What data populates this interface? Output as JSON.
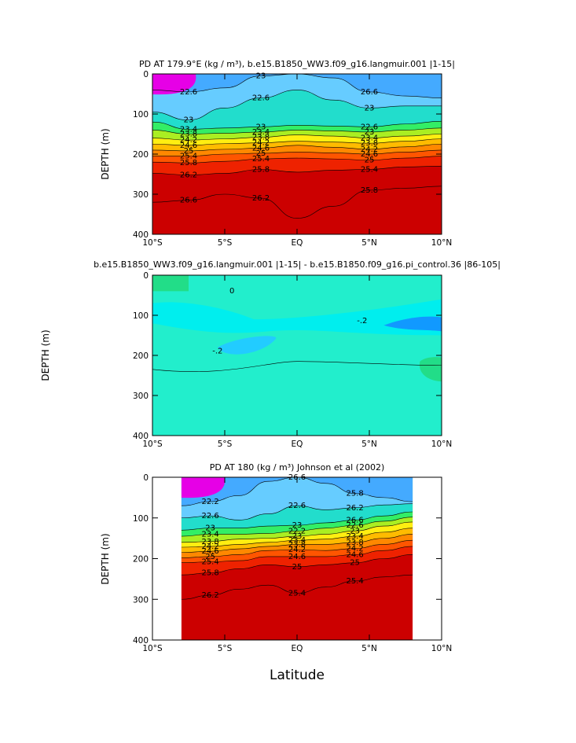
{
  "chart_data": [
    {
      "type": "contour",
      "title": "PD AT 179.9°E (kg / m³), b.e15.B1850_WW3.f09_g16.langmuir.001 |1-15|",
      "xlabel": "",
      "ylabel": "DEPTH (m)",
      "xlim": [
        -10,
        10
      ],
      "ylim": [
        400,
        0
      ],
      "x_ticks": [
        -10,
        -5,
        0,
        5,
        10
      ],
      "x_tick_labels": [
        "10°S",
        "5°S",
        "EQ",
        "5°N",
        "10°N"
      ],
      "y_ticks": [
        0,
        100,
        200,
        300,
        400
      ],
      "y_tick_labels": [
        "0",
        "100",
        "200",
        "300",
        "400"
      ],
      "contour_labels": [
        "22.6",
        "23",
        "23.4",
        "23.8",
        "24.2",
        "24.6",
        "25",
        "25.4",
        "25.8",
        "26.2",
        "26.6",
        "23",
        "22.6",
        "23",
        "23.4",
        "23.8",
        "24.2",
        "24.6",
        "25",
        "25.4",
        "25.8",
        "26.2",
        "26.6",
        "23",
        "22.6",
        "23",
        "23.4",
        "23.8",
        "24.2",
        "24.6",
        "25",
        "25.4",
        "25.8",
        "26.2",
        "26.6"
      ],
      "isopycnal_depths": {
        "x": [
          -10,
          -7.5,
          -5,
          -2.5,
          0,
          2.5,
          5,
          7.5,
          10
        ],
        "series": [
          {
            "value": 22.6,
            "depth": [
              40,
              45,
              35,
              5,
              0,
              10,
              45,
              55,
              60
            ]
          },
          {
            "value": 23.0,
            "depth": [
              95,
              115,
              85,
              60,
              40,
              65,
              85,
              80,
              80
            ]
          },
          {
            "value": 23.4,
            "depth": [
              120,
              138,
              135,
              132,
              128,
              130,
              132,
              125,
              118
            ]
          },
          {
            "value": 23.8,
            "depth": [
              140,
              150,
              148,
              145,
              140,
              142,
              145,
              140,
              135
            ]
          },
          {
            "value": 24.2,
            "depth": [
              160,
              165,
              162,
              158,
              152,
              155,
              160,
              155,
              150
            ]
          },
          {
            "value": 24.6,
            "depth": [
              175,
              178,
              174,
              172,
              168,
              170,
              173,
              168,
              162
            ]
          },
          {
            "value": 25.0,
            "depth": [
              190,
              192,
              188,
              185,
              178,
              183,
              188,
              182,
              175
            ]
          },
          {
            "value": 25.4,
            "depth": [
              205,
              205,
              200,
              198,
              195,
              197,
              200,
              195,
              190
            ]
          },
          {
            "value": 25.8,
            "depth": [
              220,
              222,
              218,
              212,
              210,
              212,
              215,
              210,
              205
            ]
          },
          {
            "value": 26.2,
            "depth": [
              248,
              252,
              248,
              238,
              245,
              240,
              238,
              232,
              230
            ]
          },
          {
            "value": 26.6,
            "depth": [
              320,
              315,
              300,
              310,
              360,
              330,
              290,
              285,
              280
            ]
          }
        ]
      },
      "fill_colors": [
        "#e600e6",
        "#9b27ff",
        "#2222ff",
        "#1177ff",
        "#44aaff",
        "#66ccff",
        "#22ddcc",
        "#33ee66",
        "#aaee22",
        "#ffee11",
        "#ffbb00",
        "#ff8800",
        "#ff5500",
        "#ee2200",
        "#cc0000"
      ]
    },
    {
      "type": "contour",
      "title": "b.e15.B1850_WW3.f09_g16.langmuir.001 |1-15| - b.e15.B1850.f09_g16.pi_control.36 |86-105|",
      "xlabel": "",
      "ylabel": "DEPTH (m)",
      "xlim": [
        -10,
        10
      ],
      "ylim": [
        400,
        0
      ],
      "x_ticks": [
        -10,
        -5,
        0,
        5,
        10
      ],
      "x_tick_labels": [
        "10°S",
        "5°S",
        "EQ",
        "5°N",
        "10°N"
      ],
      "y_ticks": [
        0,
        100,
        200,
        300,
        400
      ],
      "y_tick_labels": [
        "0",
        "100",
        "200",
        "300",
        "400"
      ],
      "contour_labels": [
        "0",
        "-.2",
        "-.2"
      ],
      "fill_colors": [
        "#22dd88",
        "#22eecc",
        "#00eeee",
        "#22ccff",
        "#1199ff"
      ]
    },
    {
      "type": "contour",
      "title": "PD AT 180 (kg / m³) Johnson et al (2002)",
      "xlabel": "Latitude",
      "ylabel": "DEPTH (m)",
      "xlim": [
        -10,
        10
      ],
      "ylim": [
        400,
        0
      ],
      "data_extent_latitude": [
        -8,
        8
      ],
      "x_ticks": [
        -10,
        -5,
        0,
        5,
        10
      ],
      "x_tick_labels": [
        "10°S",
        "5°S",
        "EQ",
        "5°N",
        "10°N"
      ],
      "y_ticks": [
        0,
        100,
        200,
        300,
        400
      ],
      "y_tick_labels": [
        "0",
        "100",
        "200",
        "300",
        "400"
      ],
      "contour_labels": [
        "22.2",
        "22.6",
        "23",
        "23.4",
        "23.8",
        "24.2",
        "24.6",
        "25",
        "25.4",
        "25.8",
        "26.2",
        "26.6",
        "22.6",
        "23",
        "22.2",
        "23",
        "23.4",
        "23.8",
        "24.2",
        "24.6",
        "25",
        "25.4",
        "25.8",
        "26.2",
        "26.6",
        "22.6",
        "23",
        "23.4",
        "23.8",
        "24.2",
        "24.6",
        "25",
        "25.4",
        "25.8",
        "26.2",
        "26.6"
      ],
      "isopycnal_depths": {
        "x": [
          -8,
          -6,
          -4,
          -2,
          0,
          2,
          4,
          6,
          8
        ],
        "series": [
          {
            "value": 22.6,
            "depth": [
              70,
              60,
              45,
              10,
              0,
              15,
              40,
              50,
              60
            ]
          },
          {
            "value": 23.0,
            "depth": [
              100,
              95,
              105,
              90,
              70,
              80,
              75,
              68,
              65
            ]
          },
          {
            "value": 23.4,
            "depth": [
              130,
              125,
              125,
              120,
              118,
              112,
              105,
              95,
              85
            ]
          },
          {
            "value": 23.8,
            "depth": [
              145,
              140,
              140,
              138,
              132,
              125,
              118,
              108,
              98
            ]
          },
          {
            "value": 24.2,
            "depth": [
              160,
              158,
              152,
              150,
              145,
              140,
              132,
              120,
              110
            ]
          },
          {
            "value": 24.6,
            "depth": [
              172,
              170,
              165,
              160,
              155,
              152,
              145,
              135,
              125
            ]
          },
          {
            "value": 25.0,
            "depth": [
              185,
              182,
              176,
              170,
              165,
              165,
              160,
              150,
              140
            ]
          },
          {
            "value": 25.4,
            "depth": [
              198,
              195,
              190,
              180,
              178,
              180,
              175,
              165,
              155
            ]
          },
          {
            "value": 25.8,
            "depth": [
              210,
              208,
              205,
              195,
              195,
              195,
              190,
              180,
              170
            ]
          },
          {
            "value": 26.2,
            "depth": [
              240,
              235,
              225,
              215,
              220,
              215,
              210,
              200,
              190
            ]
          },
          {
            "value": 26.6,
            "depth": [
              300,
              290,
              275,
              265,
              285,
              270,
              255,
              245,
              240
            ]
          }
        ]
      },
      "fill_colors": [
        "#e600e6",
        "#9b27ff",
        "#2222ff",
        "#1177ff",
        "#44aaff",
        "#66ccff",
        "#22ddcc",
        "#33ee66",
        "#aaee22",
        "#ffee11",
        "#ffbb00",
        "#ff8800",
        "#ff5500",
        "#ee2200",
        "#cc0000"
      ]
    }
  ]
}
